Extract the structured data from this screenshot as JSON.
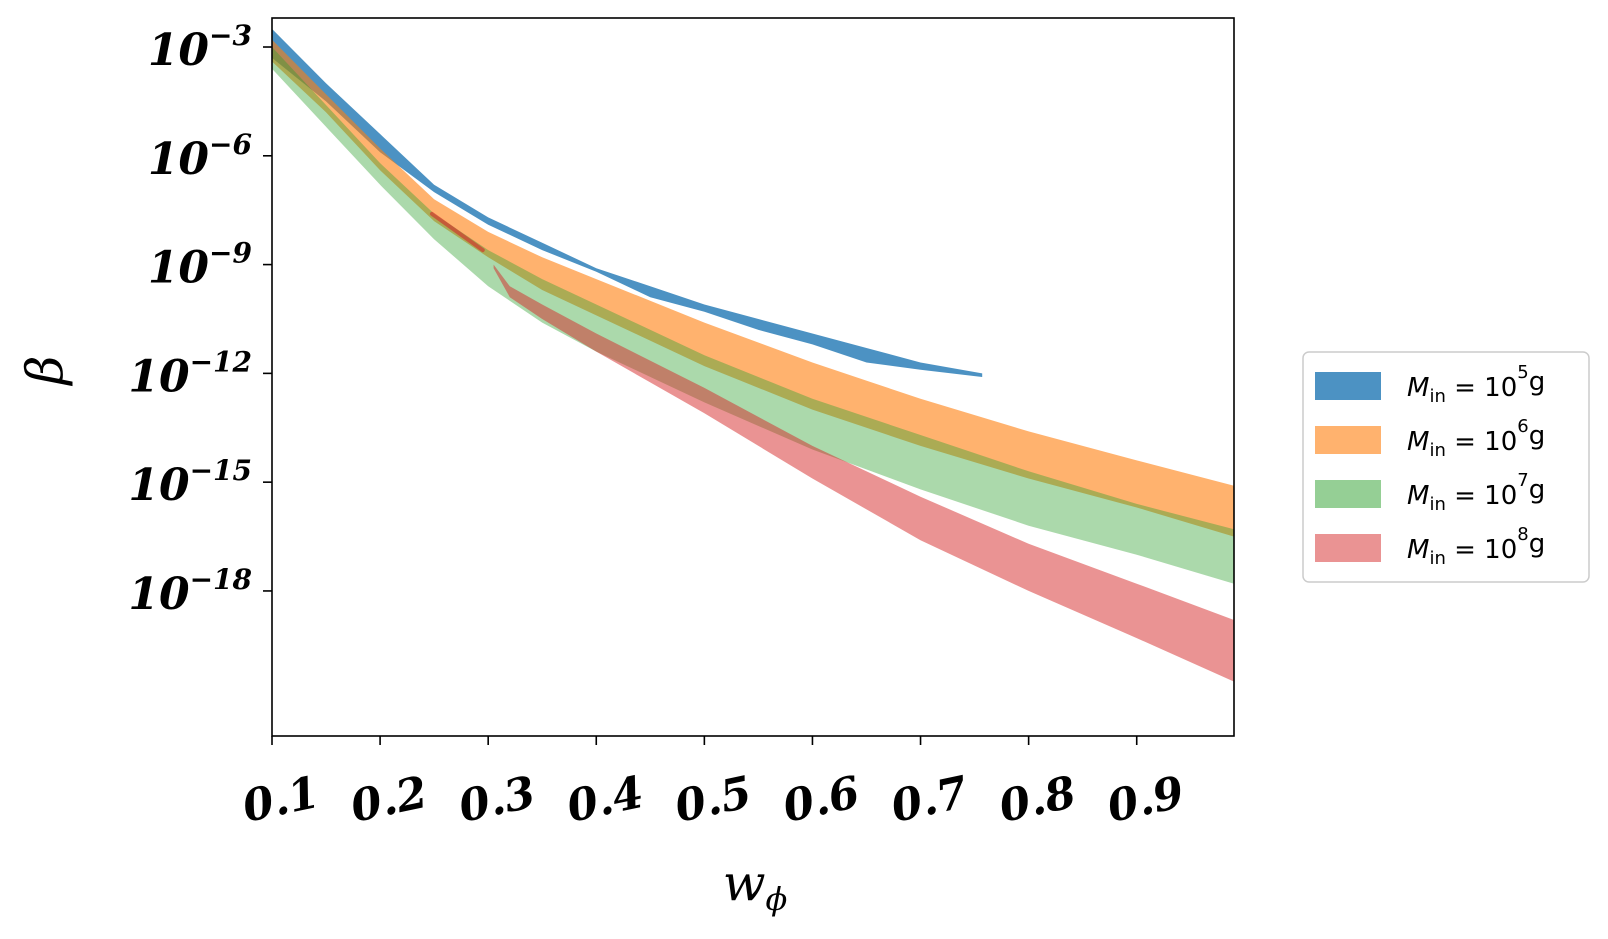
{
  "chart_data": {
    "type": "area",
    "title": "",
    "xlabel": "w",
    "xlabel_sub": "ϕ",
    "ylabel": "β",
    "xlim": [
      0.1,
      0.99
    ],
    "ylim_log10": [
      -22,
      -2.2
    ],
    "y_scale": "log",
    "grid": false,
    "legend_position": "right-outside",
    "x_ticks": [
      {
        "value": 0.1,
        "label": "0.1"
      },
      {
        "value": 0.2,
        "label": "0.2"
      },
      {
        "value": 0.3,
        "label": "0.3"
      },
      {
        "value": 0.4,
        "label": "0.4"
      },
      {
        "value": 0.5,
        "label": "0.5"
      },
      {
        "value": 0.6,
        "label": "0.6"
      },
      {
        "value": 0.7,
        "label": "0.7"
      },
      {
        "value": 0.8,
        "label": "0.8"
      },
      {
        "value": 0.9,
        "label": "0.9"
      }
    ],
    "y_ticks": [
      {
        "log10": -3,
        "base": "10",
        "exp": "−3"
      },
      {
        "log10": -6,
        "base": "10",
        "exp": "−6"
      },
      {
        "log10": -9,
        "base": "10",
        "exp": "−9"
      },
      {
        "log10": -12,
        "base": "10",
        "exp": "−12"
      },
      {
        "log10": -15,
        "base": "10",
        "exp": "−15"
      },
      {
        "log10": -18,
        "base": "10",
        "exp": "−18"
      }
    ],
    "series": [
      {
        "name": "M_in = 10^5 g",
        "legend_label": {
          "m": "M",
          "sub": "in",
          "eq": " = 10",
          "sup": "5",
          "unit": "g"
        },
        "color": "#1f77b4",
        "opacity": 0.8,
        "x": [
          0.1,
          0.15,
          0.2,
          0.25,
          0.3,
          0.35,
          0.4,
          0.45,
          0.5,
          0.55,
          0.6,
          0.65,
          0.7,
          0.757
        ],
        "upper_log10": [
          -2.5,
          -4.0,
          -5.4,
          -6.8,
          -7.7,
          -8.4,
          -9.1,
          -9.6,
          -10.1,
          -10.5,
          -10.9,
          -11.3,
          -11.7,
          -12.0
        ],
        "lower_log10": [
          -3.3,
          -4.5,
          -5.9,
          -7.0,
          -7.9,
          -8.6,
          -9.2,
          -9.9,
          -10.3,
          -10.8,
          -11.2,
          -11.7,
          -11.9,
          -12.1
        ]
      },
      {
        "name": "M_in = 10^6 g",
        "legend_label": {
          "m": "M",
          "sub": "in",
          "eq": " = 10",
          "sup": "6",
          "unit": "g"
        },
        "color": "#ff7f0e",
        "opacity": 0.6,
        "x": [
          0.1,
          0.15,
          0.2,
          0.25,
          0.3,
          0.35,
          0.4,
          0.5,
          0.6,
          0.7,
          0.8,
          0.9,
          0.99
        ],
        "upper_log10": [
          -2.8,
          -4.3,
          -5.8,
          -7.2,
          -8.1,
          -8.8,
          -9.4,
          -10.6,
          -11.7,
          -12.7,
          -13.6,
          -14.4,
          -15.1
        ],
        "lower_log10": [
          -3.4,
          -4.8,
          -6.4,
          -7.8,
          -8.8,
          -9.7,
          -10.4,
          -11.8,
          -13.0,
          -14.0,
          -14.9,
          -15.7,
          -16.5
        ]
      },
      {
        "name": "M_in = 10^7 g",
        "legend_label": {
          "m": "M",
          "sub": "in",
          "eq": " = 10",
          "sup": "7",
          "unit": "g"
        },
        "color": "#2ca02c",
        "opacity": 0.4,
        "x": [
          0.1,
          0.15,
          0.2,
          0.25,
          0.3,
          0.35,
          0.4,
          0.5,
          0.6,
          0.7,
          0.8,
          0.9,
          0.99
        ],
        "upper_log10": [
          -3.0,
          -4.6,
          -6.2,
          -7.6,
          -8.6,
          -9.4,
          -10.1,
          -11.5,
          -12.7,
          -13.7,
          -14.7,
          -15.6,
          -16.3
        ],
        "lower_log10": [
          -3.6,
          -5.2,
          -6.8,
          -8.3,
          -9.6,
          -10.6,
          -11.4,
          -12.8,
          -14.1,
          -15.2,
          -16.2,
          -17.0,
          -17.8
        ]
      },
      {
        "name": "M_in = 10^8 g",
        "legend_label": {
          "m": "M",
          "sub": "in",
          "eq": " = 10",
          "sup": "8",
          "unit": "g"
        },
        "color": "#d62728",
        "opacity": 0.5,
        "x": [
          0.305,
          0.32,
          0.35,
          0.4,
          0.5,
          0.6,
          0.7,
          0.8,
          0.9,
          0.99
        ],
        "upper_log10": [
          -9.0,
          -9.6,
          -10.1,
          -10.9,
          -12.4,
          -14.0,
          -15.4,
          -16.7,
          -17.8,
          -18.8
        ],
        "lower_log10": [
          -9.1,
          -9.9,
          -10.5,
          -11.4,
          -13.1,
          -14.9,
          -16.6,
          -18.0,
          -19.3,
          -20.5
        ],
        "fragment": {
          "x": [
            0.248,
            0.295
          ],
          "log10": [
            -7.6,
            -8.6
          ]
        }
      }
    ]
  }
}
